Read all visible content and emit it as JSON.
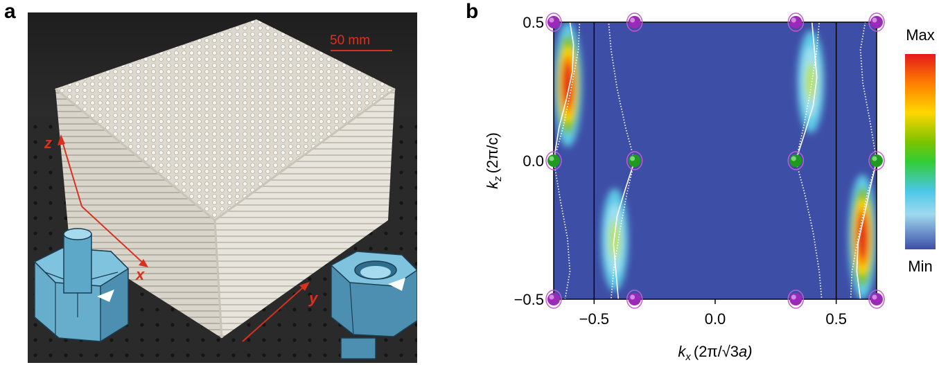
{
  "panel_a": {
    "label": "a",
    "scale_bar_text": "50 mm",
    "axis_z": "z",
    "axis_x": "x",
    "axis_y": "y",
    "colors": {
      "background": "#2b2b2b",
      "lattice": "#e9e6dd",
      "arrows": "#d8321f",
      "unit_cell": "#6fb6d6"
    }
  },
  "panel_b": {
    "label": "b",
    "colorbar": {
      "max_label": "Max",
      "min_label": "Min",
      "colors": [
        "#e31a1c",
        "#ff7f00",
        "#ffd700",
        "#7cc300",
        "#33cc33",
        "#4ac7e6",
        "#9fd9ef",
        "#3d4ea6"
      ]
    }
  },
  "chart_data": {
    "type": "heatmap",
    "xlabel_var": "k",
    "xlabel_sub": "x",
    "xlabel_unit_a": "(2π/",
    "xlabel_unit_b": "√3",
    "xlabel_unit_c": "a)",
    "ylabel_var": "k",
    "ylabel_sub": "z",
    "ylabel_unit": "(2π/c)",
    "xlim": [
      -0.667,
      0.667
    ],
    "ylim": [
      -0.5,
      0.5
    ],
    "x_ticks": [
      -0.5,
      0.0,
      0.5
    ],
    "x_tick_labels": [
      "−0.5",
      "0.0",
      "0.5"
    ],
    "y_ticks": [
      -0.5,
      0.0,
      0.5
    ],
    "y_tick_labels": [
      "−0.5",
      "0.0",
      "0.5"
    ],
    "background_color": "#3d4ea6",
    "vertical_lines": [
      -0.5,
      0.5
    ],
    "weyl_points_purple": [
      [
        -0.667,
        0.5
      ],
      [
        -0.333,
        0.5
      ],
      [
        0.333,
        0.5
      ],
      [
        0.667,
        0.5
      ],
      [
        -0.667,
        -0.5
      ],
      [
        -0.333,
        -0.5
      ],
      [
        0.333,
        -0.5
      ],
      [
        0.667,
        -0.5
      ]
    ],
    "weyl_points_green": [
      [
        -0.667,
        0.0
      ],
      [
        -0.333,
        0.0
      ],
      [
        0.333,
        0.0
      ],
      [
        0.667,
        0.0
      ]
    ],
    "solid_curves": [
      {
        "points": [
          [
            -0.6,
            0.5
          ],
          [
            -0.585,
            0.42
          ],
          [
            -0.59,
            0.32
          ],
          [
            -0.615,
            0.22
          ],
          [
            -0.645,
            0.12
          ],
          [
            -0.667,
            0.0
          ]
        ]
      },
      {
        "points": [
          [
            -0.333,
            0.0
          ],
          [
            -0.37,
            -0.1
          ],
          [
            -0.405,
            -0.2
          ],
          [
            -0.42,
            -0.3
          ],
          [
            -0.41,
            -0.4
          ],
          [
            -0.4,
            -0.5
          ]
        ]
      },
      {
        "points": [
          [
            0.4,
            0.5
          ],
          [
            0.41,
            0.4
          ],
          [
            0.42,
            0.3
          ],
          [
            0.405,
            0.2
          ],
          [
            0.37,
            0.1
          ],
          [
            0.333,
            0.0
          ]
        ]
      },
      {
        "points": [
          [
            0.667,
            0.0
          ],
          [
            0.64,
            -0.1
          ],
          [
            0.615,
            -0.2
          ],
          [
            0.59,
            -0.3
          ],
          [
            0.585,
            -0.4
          ],
          [
            0.6,
            -0.5
          ]
        ]
      }
    ],
    "dotted_curves": [
      {
        "points": [
          [
            -0.667,
            0.0
          ],
          [
            -0.628,
            0.12
          ],
          [
            -0.595,
            0.26
          ],
          [
            -0.565,
            0.4
          ],
          [
            -0.56,
            0.5
          ]
        ]
      },
      {
        "points": [
          [
            -0.62,
            -0.5
          ],
          [
            -0.6,
            -0.4
          ],
          [
            -0.61,
            -0.28
          ],
          [
            -0.64,
            -0.14
          ],
          [
            -0.667,
            0.0
          ]
        ]
      },
      {
        "points": [
          [
            -0.333,
            0.0
          ],
          [
            -0.37,
            0.12
          ],
          [
            -0.405,
            0.26
          ],
          [
            -0.43,
            0.4
          ],
          [
            -0.44,
            0.5
          ]
        ]
      },
      {
        "points": [
          [
            -0.333,
            0.0
          ],
          [
            -0.365,
            -0.12
          ],
          [
            -0.395,
            -0.26
          ],
          [
            -0.42,
            -0.4
          ],
          [
            -0.43,
            -0.5
          ]
        ]
      },
      {
        "points": [
          [
            0.333,
            0.0
          ],
          [
            0.365,
            0.12
          ],
          [
            0.395,
            0.26
          ],
          [
            0.42,
            0.4
          ],
          [
            0.43,
            0.5
          ]
        ]
      },
      {
        "points": [
          [
            0.333,
            0.0
          ],
          [
            0.37,
            -0.12
          ],
          [
            0.405,
            -0.26
          ],
          [
            0.43,
            -0.4
          ],
          [
            0.44,
            -0.5
          ]
        ]
      },
      {
        "points": [
          [
            0.62,
            0.5
          ],
          [
            0.6,
            0.4
          ],
          [
            0.61,
            0.28
          ],
          [
            0.64,
            0.14
          ],
          [
            0.667,
            0.0
          ]
        ]
      },
      {
        "points": [
          [
            0.667,
            0.0
          ],
          [
            0.628,
            -0.12
          ],
          [
            0.595,
            -0.26
          ],
          [
            0.565,
            -0.4
          ],
          [
            0.56,
            -0.5
          ]
        ]
      }
    ],
    "intensity_regions": [
      {
        "name": "left-upper",
        "x_range": [
          -0.667,
          -0.55
        ],
        "y_range": [
          0.05,
          0.5
        ],
        "level": "max"
      },
      {
        "name": "left-lower",
        "x_range": [
          -0.47,
          -0.36
        ],
        "y_range": [
          -0.47,
          -0.1
        ],
        "level": "medium"
      },
      {
        "name": "right-upper",
        "x_range": [
          0.34,
          0.45
        ],
        "y_range": [
          0.1,
          0.47
        ],
        "level": "medium"
      },
      {
        "name": "right-lower",
        "x_range": [
          0.55,
          0.667
        ],
        "y_range": [
          -0.5,
          -0.05
        ],
        "level": "max"
      }
    ]
  }
}
